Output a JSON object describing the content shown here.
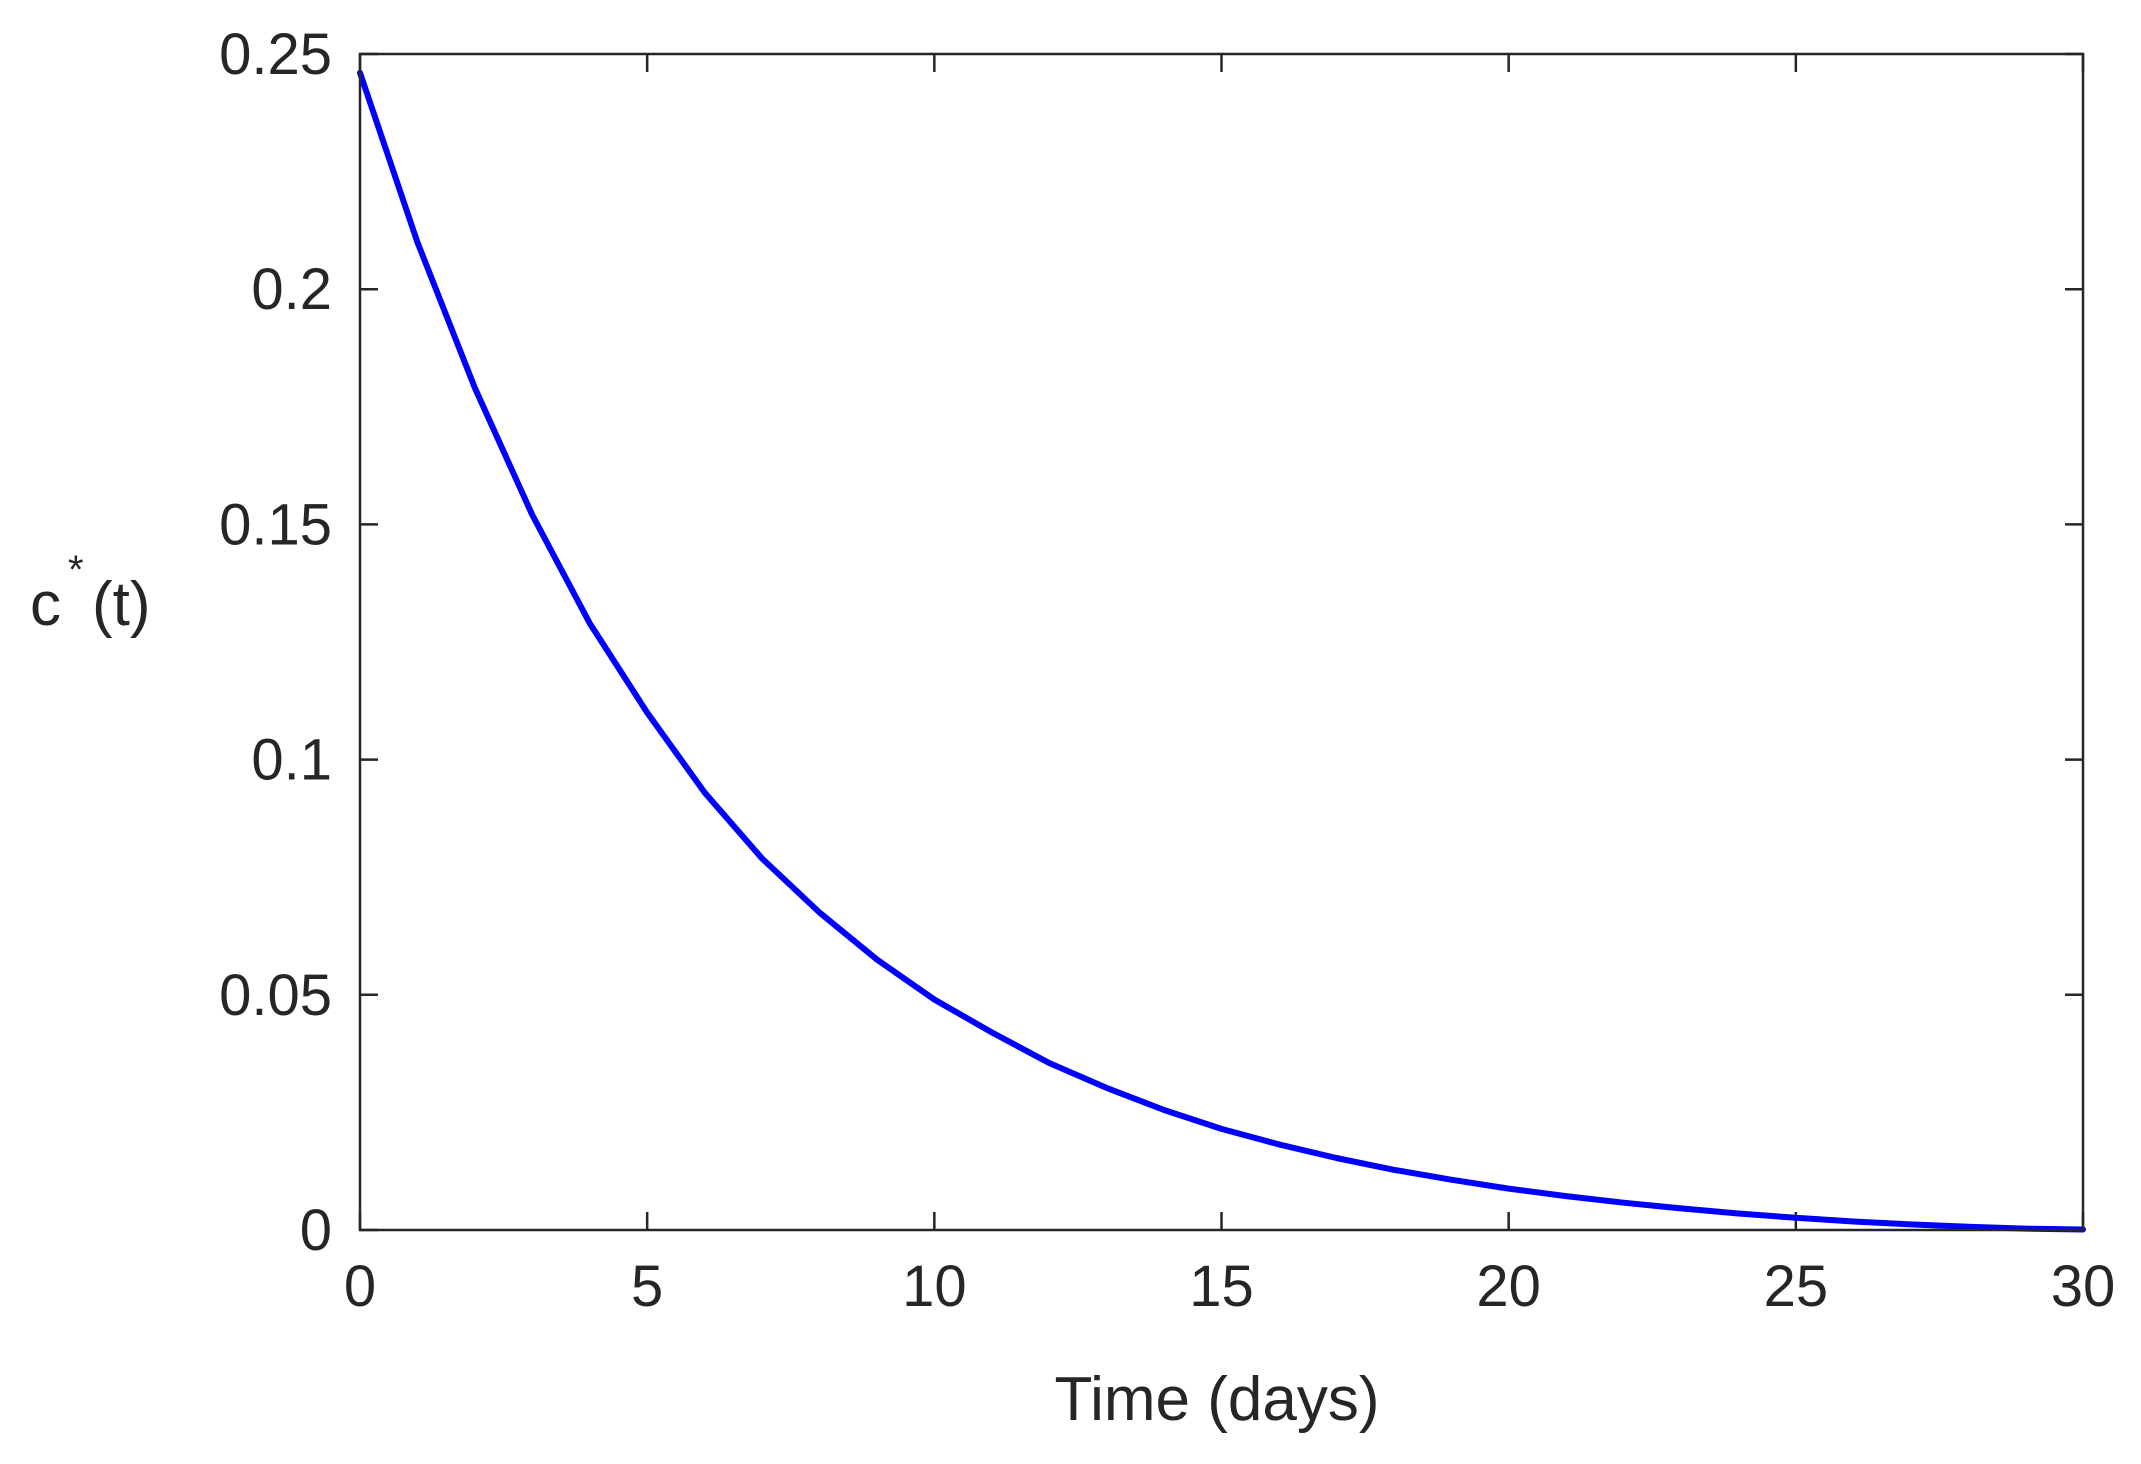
{
  "chart_data": {
    "type": "line",
    "xlabel": "Time (days)",
    "ylabel": {
      "base": "c",
      "superscript": "*",
      "suffix": "(t)"
    },
    "xlim": [
      0,
      30
    ],
    "ylim": [
      0,
      0.25
    ],
    "xticks": [
      0,
      5,
      10,
      15,
      20,
      25,
      30
    ],
    "yticks": [
      0,
      0.05,
      0.1,
      0.15,
      0.2,
      0.25
    ],
    "xtick_labels": [
      "0",
      "5",
      "10",
      "15",
      "20",
      "25",
      "30"
    ],
    "ytick_labels": [
      "0",
      "0.05",
      "0.1",
      "0.15",
      "0.2",
      "0.25"
    ],
    "grid": false,
    "box": true,
    "series": [
      {
        "color": "#0000ff",
        "x": [
          0,
          1,
          2,
          3,
          4,
          5,
          6,
          7,
          8,
          9,
          10,
          11,
          12,
          13,
          14,
          15,
          16,
          17,
          18,
          19,
          20,
          21,
          22,
          23,
          24,
          25,
          26,
          27,
          28,
          29,
          30
        ],
        "y": [
          0.246,
          0.21,
          0.179,
          0.152,
          0.129,
          0.11,
          0.093,
          0.079,
          0.0675,
          0.0575,
          0.049,
          0.042,
          0.0355,
          0.0302,
          0.0255,
          0.0215,
          0.0182,
          0.0153,
          0.0128,
          0.0107,
          0.0088,
          0.0072,
          0.0058,
          0.0046,
          0.0035,
          0.0026,
          0.0018,
          0.0012,
          0.0007,
          0.0003,
          0.0001
        ]
      }
    ]
  }
}
